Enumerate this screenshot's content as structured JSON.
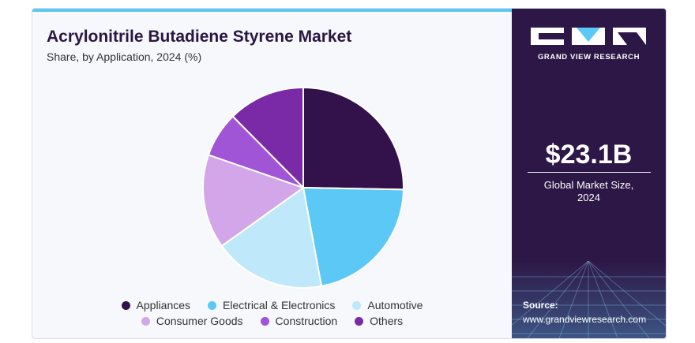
{
  "title": "Acrylonitrile Butadiene Styrene Market",
  "subtitle": "Share, by Application, 2024 (%)",
  "brand": {
    "name": "GRAND VIEW RESEARCH",
    "logo_icon": "gvr-logo-icon"
  },
  "market_size": {
    "value": "$23.1B",
    "label_line1": "Global Market Size,",
    "label_line2": "2024"
  },
  "source": {
    "label": "Source:",
    "url": "www.grandviewresearch.com"
  },
  "colors": {
    "panel": "#2d1746",
    "accent": "#5bc8f5",
    "title": "#2a1642"
  },
  "chart_data": {
    "type": "pie",
    "categories": [
      "Appliances",
      "Electrical & Electronics",
      "Automotive",
      "Consumer Goods",
      "Construction",
      "Others"
    ],
    "values": [
      25.3,
      21.8,
      18.0,
      15.2,
      7.3,
      12.4
    ],
    "colors": [
      "#33114b",
      "#5bc8f5",
      "#bfe8fa",
      "#d3a6ea",
      "#a054d6",
      "#7a2aa6"
    ],
    "legend": "bottom-center"
  }
}
